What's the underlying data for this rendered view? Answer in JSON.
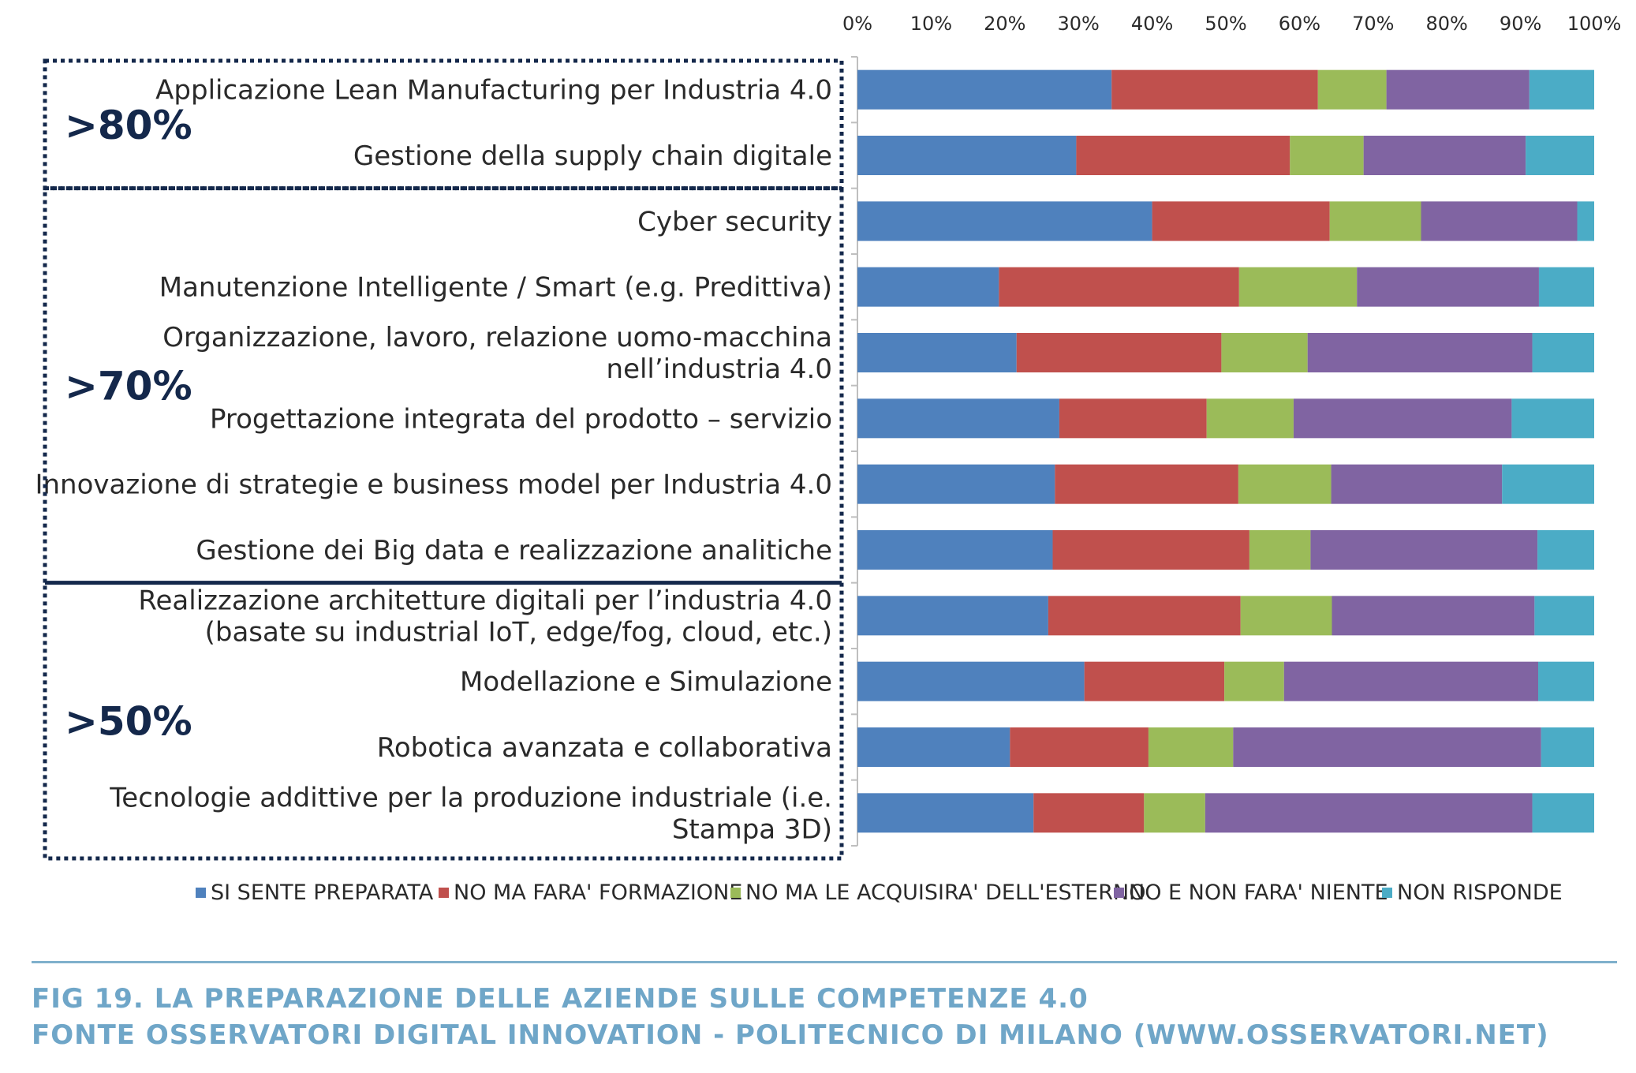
{
  "chart_data": {
    "type": "bar",
    "orientation": "horizontal",
    "stacked": true,
    "xlim": [
      0,
      100
    ],
    "tick_labels": [
      "0%",
      "10%",
      "20%",
      "30%",
      "40%",
      "50%",
      "60%",
      "70%",
      "80%",
      "90%",
      "100%"
    ],
    "categories": [
      [
        "Applicazione Lean Manufacturing per Industria 4.0"
      ],
      [
        "Gestione della supply chain digitale"
      ],
      [
        "Cyber security"
      ],
      [
        "Manutenzione Intelligente / Smart (e.g. Predittiva)"
      ],
      [
        "Organizzazione, lavoro, relazione uomo-macchina",
        "nell’industria 4.0"
      ],
      [
        "Progettazione integrata del prodotto – servizio"
      ],
      [
        "Innovazione di strategie e business model per Industria 4.0"
      ],
      [
        "Gestione dei Big data e realizzazione analitiche"
      ],
      [
        "Realizzazione architetture digitali per l’industria 4.0",
        "(basate su industrial IoT, edge/fog, cloud, etc.)"
      ],
      [
        "Modellazione e Simulazione"
      ],
      [
        "Robotica avanzata e collaborativa"
      ],
      [
        "Tecnologie addittive per la produzione industriale (i.e.",
        "Stampa 3D)"
      ]
    ],
    "series": [
      {
        "name": "SI SENTE PREPARATA",
        "color": "#4f81bd",
        "values": [
          34.5,
          29.7,
          40.0,
          19.2,
          21.6,
          27.4,
          26.8,
          26.5,
          25.9,
          30.8,
          20.7,
          23.9
        ]
      },
      {
        "name": "NO MA FARA' FORMAZIONE",
        "color": "#c0504d",
        "values": [
          28.0,
          29.0,
          24.1,
          32.6,
          27.8,
          20.0,
          24.9,
          26.7,
          26.1,
          19.0,
          18.8,
          15.0
        ]
      },
      {
        "name": "NO MA LE ACQUISIRA' DELL'ESTERNO",
        "color": "#9bbb59",
        "values": [
          9.3,
          10.0,
          12.4,
          16.0,
          11.7,
          11.8,
          12.6,
          8.3,
          12.4,
          8.1,
          11.5,
          8.3
        ]
      },
      {
        "name": "NO E NON FARA' NIENTE",
        "color": "#8064a2",
        "values": [
          19.4,
          22.0,
          21.2,
          24.7,
          30.5,
          29.6,
          23.2,
          30.8,
          27.5,
          34.5,
          41.8,
          44.4
        ]
      },
      {
        "name": "NON RISPONDE",
        "color": "#4bacc6",
        "values": [
          8.8,
          9.3,
          2.3,
          7.5,
          8.4,
          11.2,
          12.5,
          7.7,
          8.1,
          7.6,
          7.2,
          8.4
        ]
      }
    ],
    "groups": [
      {
        "label": ">80%",
        "first": 0,
        "last": 1
      },
      {
        "label": ">70%",
        "first": 2,
        "last": 7
      },
      {
        "label": ">50%",
        "first": 8,
        "last": 11
      }
    ],
    "legend_position": "bottom",
    "grid": false
  },
  "caption": {
    "line1": "FIG 19. LA PREPARAZIONE DELLE AZIENDE SULLE COMPETENZE 4.0",
    "line2": "FONTE OSSERVATORI DIGITAL INNOVATION - POLITECNICO DI MILANO (WWW.OSSERVATORI.NET)"
  }
}
